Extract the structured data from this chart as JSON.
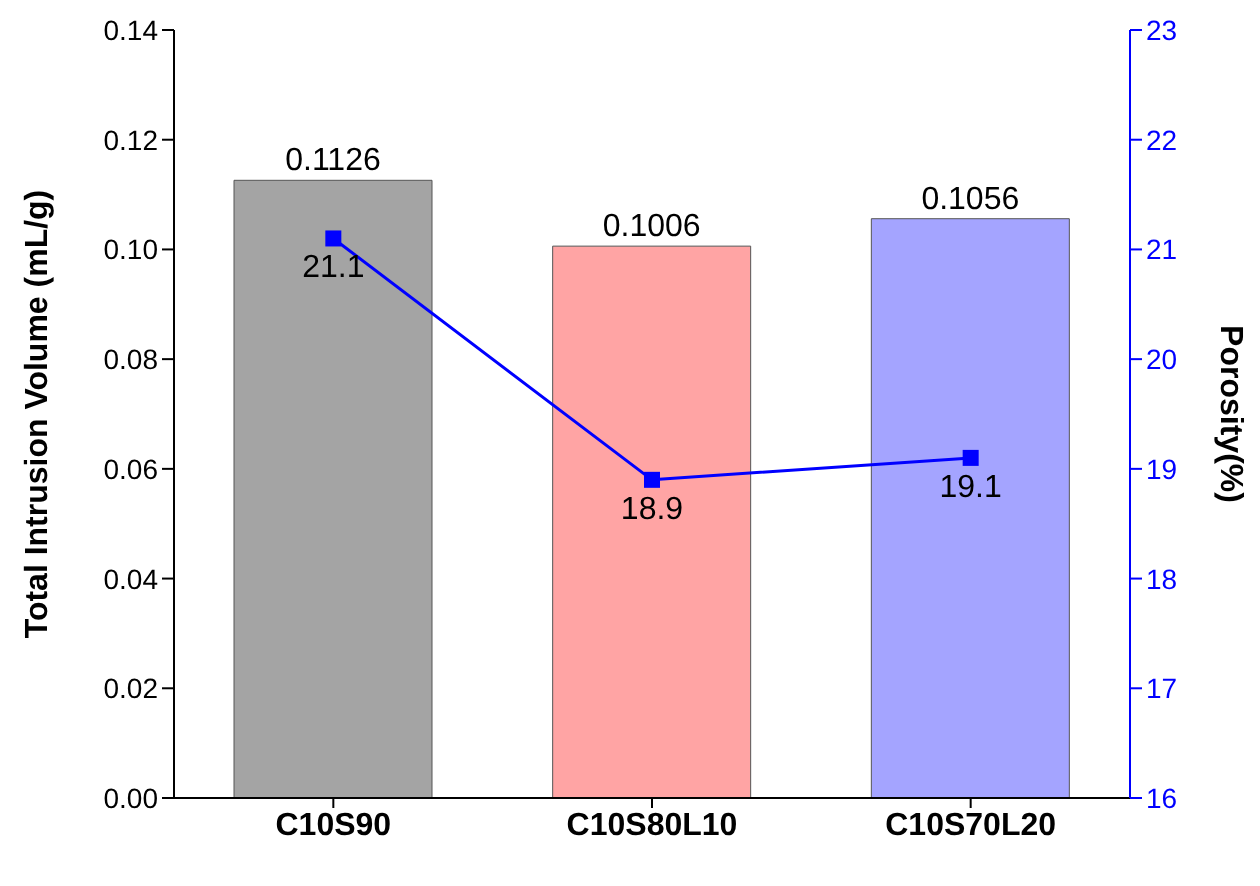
{
  "chart_data": {
    "type": "bar",
    "categories": [
      "C10S90",
      "C10S80L10",
      "C10S70L20"
    ],
    "ylabel": "Total Intrusion Volume (mL/g)",
    "y2label": "Porosity(%)",
    "series": [
      {
        "colors": [
          "#a4a4a4",
          "#ffa4a4",
          "#a4a4ff"
        ],
        "values": [
          0.1126,
          0.1006,
          0.1056
        ]
      },
      {
        "type": "line",
        "axis": "y2",
        "color": "#0000ff",
        "marker": "square",
        "values": [
          21.1,
          18.9,
          19.1
        ]
      }
    ],
    "ylim": [
      0,
      0.14
    ],
    "yticks": [
      {
        "value": 0,
        "label": "0.00"
      },
      {
        "value": 0.02,
        "label": "0.02"
      },
      {
        "value": 0.04,
        "label": "0.04"
      },
      {
        "value": 0.06,
        "label": "0.06"
      },
      {
        "value": 0.08,
        "label": "0.08"
      },
      {
        "value": 0.1,
        "label": "0.10"
      },
      {
        "value": 0.12,
        "label": "0.12"
      },
      {
        "value": 0.14,
        "label": "0.14"
      }
    ],
    "y2lim": [
      16,
      23
    ],
    "y2ticks": [
      16,
      17,
      18,
      19,
      20,
      21,
      22,
      23
    ],
    "data_labels": true,
    "grid": false,
    "legend": false
  }
}
